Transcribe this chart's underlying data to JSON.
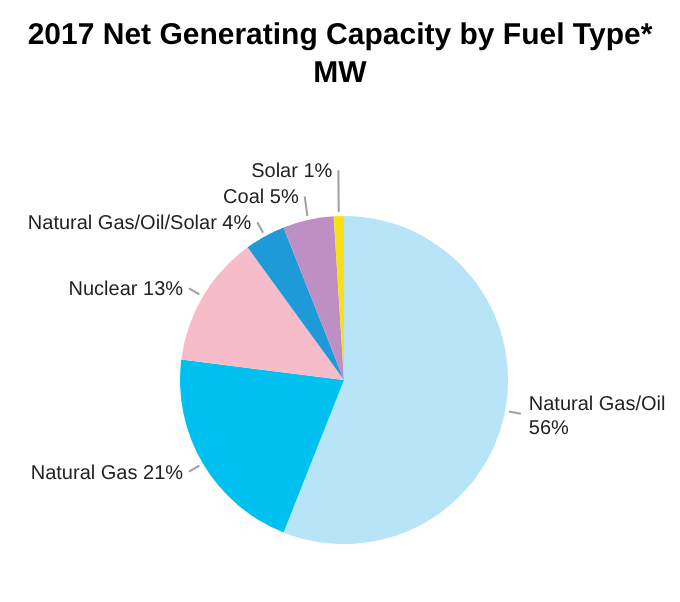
{
  "chart_data": {
    "type": "pie",
    "title": "2017 Net Generating Capacity by Fuel Type*",
    "subtitle": "MW",
    "categories": [
      "Natural Gas/Oil",
      "Natural Gas",
      "Nuclear",
      "Natural Gas/Oil/Solar",
      "Coal",
      "Solar"
    ],
    "values": [
      56,
      21,
      13,
      4,
      5,
      1
    ],
    "colors": [
      "#b8e4f7",
      "#00c0f0",
      "#f7bcc9",
      "#1e9ad8",
      "#bd8fc3",
      "#f8e016"
    ],
    "value_labels": [
      "56%",
      "21%",
      "13%",
      "4%",
      "5%",
      "1%"
    ]
  }
}
